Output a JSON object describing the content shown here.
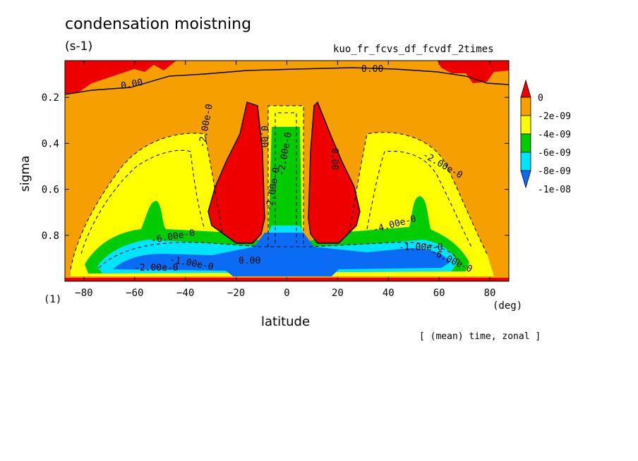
{
  "chart_data": {
    "type": "heatmap",
    "title": "condensation moistning",
    "units": "(s-1)",
    "run_name": "kuo_fr_fcvs_df_fcvdf_2times",
    "xlabel": "latitude",
    "xunits": "(deg)",
    "ylabel": "sigma",
    "scale_note": "(1)",
    "footnote": "[ (mean) time, zonal ]",
    "xlim": [
      -87.5,
      87.5
    ],
    "ylim": [
      1.0,
      0.04
    ],
    "xticks": [
      -80,
      -60,
      -40,
      -20,
      0,
      20,
      40,
      60,
      80
    ],
    "yticks": [
      0.2,
      0.4,
      0.6,
      0.8
    ],
    "legend": {
      "labels": [
        "0",
        "-2e-09",
        "-4e-09",
        "-6e-09",
        "-8e-09",
        "-1e-08"
      ],
      "colors": [
        "#ee0000",
        "#f5a000",
        "#ffff00",
        "#00cc00",
        "#00e5ff",
        "#0a6cf5"
      ]
    },
    "contour_labels": [
      "0.00",
      "0.00",
      "0.00",
      "0.00",
      "0.00",
      "-2.00e-0",
      "-2.00e-0",
      "-2.00e-0",
      "-2.00e-0",
      "-4.00e-0",
      "-6.00e-0",
      "-6.00e-0",
      "-1.00e-0",
      "-1.00e-0",
      "-2.00e-0"
    ]
  }
}
